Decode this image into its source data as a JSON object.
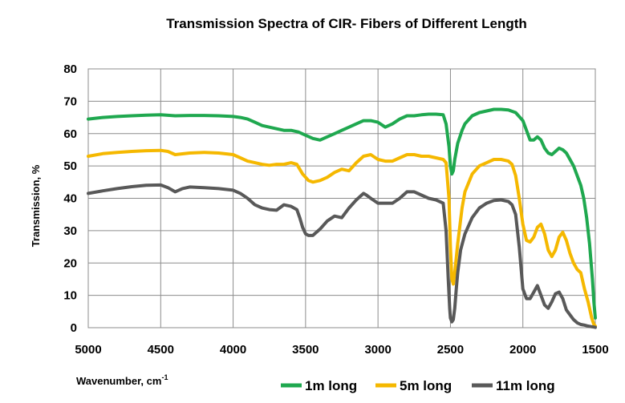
{
  "chart_data": {
    "type": "line",
    "title": "Transmission  Spectra  of  CIR- Fibers of Different Length",
    "xlabel": "Wavenumber, cm",
    "xlabel_superscript": "-1",
    "ylabel": "Transmission, %",
    "xlim": [
      5000,
      1500
    ],
    "ylim": [
      0,
      80
    ],
    "x_reversed": true,
    "x_ticks": [
      5000,
      4500,
      4000,
      3500,
      3000,
      2500,
      2000,
      1500
    ],
    "y_ticks": [
      0,
      10,
      20,
      30,
      40,
      50,
      60,
      70,
      80
    ],
    "grid": true,
    "legend_position": "bottom",
    "series": [
      {
        "name": "1m long",
        "color": "#1fa84f",
        "x": [
          5000,
          4900,
          4800,
          4700,
          4600,
          4500,
          4400,
          4300,
          4200,
          4100,
          4000,
          3950,
          3900,
          3850,
          3800,
          3750,
          3700,
          3650,
          3600,
          3550,
          3500,
          3450,
          3400,
          3350,
          3300,
          3250,
          3200,
          3150,
          3100,
          3050,
          3000,
          2950,
          2900,
          2850,
          2800,
          2750,
          2700,
          2650,
          2600,
          2550,
          2530,
          2510,
          2500,
          2490,
          2480,
          2470,
          2450,
          2420,
          2400,
          2350,
          2300,
          2250,
          2200,
          2150,
          2100,
          2050,
          2000,
          1975,
          1950,
          1925,
          1900,
          1875,
          1850,
          1825,
          1800,
          1775,
          1750,
          1725,
          1700,
          1675,
          1650,
          1625,
          1600,
          1580,
          1560,
          1540,
          1520,
          1510,
          1500
        ],
        "y": [
          64.5,
          65,
          65.3,
          65.5,
          65.7,
          65.8,
          65.5,
          65.6,
          65.6,
          65.5,
          65.3,
          65,
          64.5,
          63.5,
          62.5,
          62,
          61.5,
          61,
          61,
          60.5,
          59.5,
          58.5,
          58,
          59,
          60,
          61,
          62,
          63,
          64,
          64,
          63.5,
          62,
          63,
          64.5,
          65.5,
          65.5,
          65.8,
          66,
          66,
          65.8,
          63,
          56,
          50,
          47.5,
          48.5,
          52,
          57,
          61,
          63,
          65.5,
          66.5,
          67,
          67.5,
          67.5,
          67.3,
          66.5,
          64,
          61,
          58,
          58,
          59,
          58,
          55.5,
          54,
          53.5,
          54.5,
          55.5,
          55,
          54,
          52,
          50,
          47,
          44,
          40,
          34,
          26,
          15,
          8,
          3
        ]
      },
      {
        "name": "5m long",
        "color": "#f5b800",
        "x": [
          5000,
          4900,
          4800,
          4700,
          4600,
          4500,
          4450,
          4400,
          4300,
          4200,
          4100,
          4000,
          3950,
          3900,
          3850,
          3800,
          3750,
          3700,
          3650,
          3600,
          3560,
          3520,
          3480,
          3450,
          3400,
          3350,
          3300,
          3250,
          3200,
          3150,
          3100,
          3050,
          3000,
          2950,
          2900,
          2850,
          2800,
          2750,
          2700,
          2650,
          2600,
          2550,
          2530,
          2510,
          2500,
          2490,
          2480,
          2470,
          2450,
          2420,
          2400,
          2350,
          2300,
          2250,
          2200,
          2150,
          2100,
          2075,
          2050,
          2025,
          2000,
          1975,
          1950,
          1925,
          1900,
          1875,
          1850,
          1825,
          1800,
          1775,
          1750,
          1725,
          1700,
          1675,
          1650,
          1625,
          1600,
          1575,
          1550,
          1525,
          1510,
          1500
        ],
        "y": [
          53,
          53.8,
          54.2,
          54.5,
          54.7,
          54.8,
          54.5,
          53.5,
          54,
          54.2,
          54,
          53.5,
          52.5,
          51.5,
          51,
          50.5,
          50.2,
          50.5,
          50.5,
          51,
          50.5,
          47.5,
          45.5,
          45,
          45.5,
          46.5,
          48,
          49,
          48.5,
          51,
          53,
          53.5,
          52,
          51.5,
          51.5,
          52.5,
          53.5,
          53.5,
          53,
          53,
          52.5,
          52,
          51,
          40,
          25,
          15,
          13.5,
          17,
          26,
          37,
          42,
          47.5,
          50,
          51,
          52,
          52,
          51.5,
          50.5,
          47,
          40,
          32,
          27,
          26.5,
          28,
          31,
          32,
          29,
          24,
          22,
          24,
          28,
          29.5,
          27,
          23,
          20,
          18,
          17,
          12,
          8,
          3,
          1,
          0.5
        ]
      },
      {
        "name": "11m long",
        "color": "#595959",
        "x": [
          5000,
          4900,
          4800,
          4700,
          4600,
          4500,
          4450,
          4400,
          4350,
          4300,
          4200,
          4100,
          4000,
          3950,
          3900,
          3850,
          3800,
          3750,
          3700,
          3650,
          3600,
          3580,
          3560,
          3540,
          3520,
          3500,
          3480,
          3450,
          3400,
          3350,
          3300,
          3250,
          3200,
          3150,
          3100,
          3080,
          3050,
          3000,
          2950,
          2900,
          2850,
          2800,
          2750,
          2700,
          2650,
          2600,
          2550,
          2530,
          2515,
          2505,
          2500,
          2490,
          2480,
          2470,
          2460,
          2450,
          2430,
          2400,
          2350,
          2300,
          2250,
          2200,
          2150,
          2100,
          2075,
          2050,
          2025,
          2000,
          1975,
          1950,
          1925,
          1900,
          1875,
          1850,
          1825,
          1800,
          1775,
          1750,
          1725,
          1700,
          1675,
          1650,
          1625,
          1600,
          1575,
          1550,
          1525,
          1510,
          1500
        ],
        "y": [
          41.5,
          42.3,
          43,
          43.6,
          44,
          44.1,
          43.3,
          42,
          43,
          43.5,
          43.3,
          43,
          42.5,
          41.5,
          40,
          38,
          37,
          36.5,
          36.3,
          38,
          37.5,
          37,
          36.5,
          34,
          31,
          29,
          28.5,
          28.5,
          30.5,
          33,
          34.5,
          34,
          37,
          39.5,
          41.5,
          41,
          40,
          38.5,
          38.5,
          38.5,
          40,
          42,
          42,
          41,
          40,
          39.5,
          38.5,
          30,
          15,
          6,
          3,
          1.8,
          2.5,
          6,
          12,
          17,
          24,
          29,
          34,
          37,
          38.5,
          39.3,
          39.5,
          39,
          38,
          35,
          25,
          12,
          9,
          9,
          11,
          13,
          10,
          7,
          6,
          8,
          10.5,
          11,
          9,
          5.5,
          4,
          2.5,
          1.5,
          1,
          0.8,
          0.5,
          0.3,
          0.2,
          0.1
        ]
      }
    ]
  }
}
